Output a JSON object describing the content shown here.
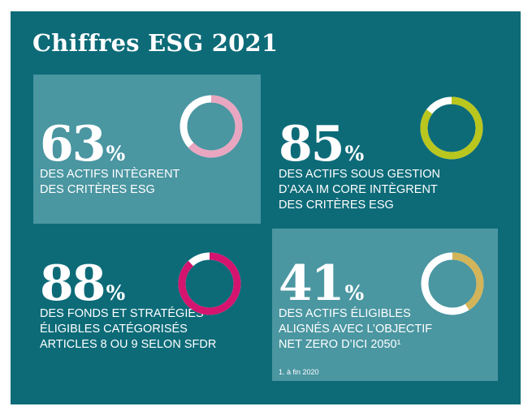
{
  "title": "Chiffres ESG 2021",
  "stats": [
    {
      "value": "63",
      "unit": "%",
      "percent": 63,
      "lines": [
        "DES ACTIFS INTÈGRENT",
        "DES CRITÈRES ESG"
      ],
      "ring_color": "#e8a6c0",
      "track_color": "#ffffff"
    },
    {
      "value": "85",
      "unit": "%",
      "percent": 85,
      "lines": [
        "DES ACTIFS SOUS GESTION",
        "D’AXA IM CORE INTÈGRENT",
        "DES CRITÈRES ESG"
      ],
      "ring_color": "#b9c61d",
      "track_color": "#ffffff"
    },
    {
      "value": "88",
      "unit": "%",
      "percent": 88,
      "lines": [
        "DES FONDS ET STRATÉGIES",
        "ÉLIGIBLES CATÉGORISÉS",
        "ARTICLES 8 OU 9 SELON SFDR"
      ],
      "ring_color": "#d4146e",
      "track_color": "#ffffff"
    },
    {
      "value": "41",
      "unit": "%",
      "percent": 41,
      "lines": [
        "DES ACTIFS ÉLIGIBLES",
        "ALIGNÉS AVEC L’OBJECTIF",
        "NET ZERO D’ICI 2050¹"
      ],
      "ring_color": "#d2b45a",
      "track_color": "#ffffff"
    }
  ],
  "footnote": "1. à fin 2020",
  "colors": {
    "background": "#0d6b78",
    "card": "#4a96a1",
    "text": "#ffffff"
  }
}
